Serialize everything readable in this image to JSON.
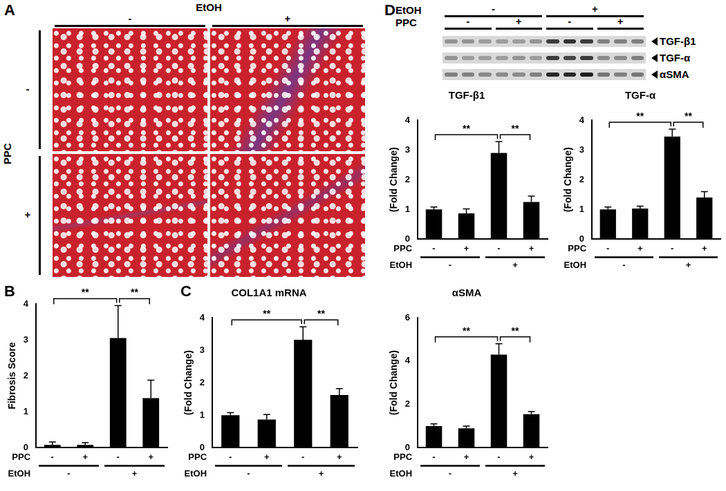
{
  "figure": {
    "histology": {
      "panel": "A",
      "column_title": "EtOH",
      "columns": [
        "-",
        "+"
      ],
      "row_title": "PPC",
      "rows": [
        "-",
        "+"
      ]
    },
    "blot": {
      "panel": "D",
      "rows": [
        {
          "name": "EtOH",
          "labels": [
            "-",
            "+"
          ]
        },
        {
          "name": "PPC",
          "labels": [
            "-",
            "+",
            "-",
            "+"
          ]
        }
      ],
      "bands": [
        "TGF-β1",
        "TGF-α",
        "αSMA"
      ]
    }
  },
  "chart_data": [
    {
      "type": "bar",
      "panel": "B",
      "y_label": "Fibrosis Score",
      "categories": [
        "-",
        "+",
        "-",
        "+"
      ],
      "category_label": "PPC",
      "groups": {
        "name": "EtOH",
        "labels": [
          "-",
          "+"
        ]
      },
      "values": [
        0.08,
        0.08,
        3.05,
        1.38
      ],
      "errors": [
        0.08,
        0.06,
        0.9,
        0.5
      ],
      "color": "#000000",
      "ylim": [
        0,
        4
      ],
      "yticks": [
        0,
        1,
        2,
        3,
        4
      ],
      "grid": false,
      "significance": [
        {
          "from": 0,
          "to": 2,
          "label": "**"
        },
        {
          "from": 2,
          "to": 3,
          "label": "**"
        }
      ]
    },
    {
      "type": "bar",
      "panel": "C",
      "title": "COL1A1 mRNA",
      "y_label": "(Fold Change)",
      "categories": [
        "-",
        "+",
        "-",
        "+"
      ],
      "category_label": "PPC",
      "groups": {
        "name": "EtOH",
        "labels": [
          "-",
          "+"
        ]
      },
      "values": [
        1.0,
        0.87,
        3.32,
        1.62
      ],
      "errors": [
        0.08,
        0.15,
        0.4,
        0.2
      ],
      "color": "#000000",
      "ylim": [
        0,
        4
      ],
      "yticks": [
        0,
        1,
        2,
        3,
        4
      ],
      "grid": false,
      "significance": [
        {
          "from": 0,
          "to": 2,
          "label": "**"
        },
        {
          "from": 2,
          "to": 3,
          "label": "**"
        }
      ]
    },
    {
      "type": "bar",
      "title": "TGF-β1",
      "y_label": "(Fold Change)",
      "categories": [
        "-",
        "+",
        "-",
        "+"
      ],
      "category_label": "PPC",
      "groups": {
        "name": "EtOH",
        "labels": [
          "-",
          "+"
        ]
      },
      "values": [
        1.0,
        0.87,
        2.9,
        1.25
      ],
      "errors": [
        0.08,
        0.15,
        0.38,
        0.2
      ],
      "color": "#000000",
      "ylim": [
        0,
        4
      ],
      "yticks": [
        0,
        1,
        2,
        3,
        4
      ],
      "grid": false,
      "significance": [
        {
          "from": 0,
          "to": 2,
          "label": "**"
        },
        {
          "from": 2,
          "to": 3,
          "label": "**"
        }
      ]
    },
    {
      "type": "bar",
      "title": "TGF-α",
      "y_label": "(Fold Change)",
      "categories": [
        "-",
        "+",
        "-",
        "+"
      ],
      "category_label": "PPC",
      "groups": {
        "name": "EtOH",
        "labels": [
          "-",
          "+"
        ]
      },
      "values": [
        1.0,
        1.03,
        3.45,
        1.4
      ],
      "errors": [
        0.08,
        0.08,
        0.25,
        0.2
      ],
      "color": "#000000",
      "ylim": [
        0,
        4
      ],
      "yticks": [
        0,
        1,
        2,
        3,
        4
      ],
      "grid": false,
      "significance": [
        {
          "from": 0,
          "to": 2,
          "label": "**"
        },
        {
          "from": 2,
          "to": 3,
          "label": "**"
        }
      ]
    },
    {
      "type": "bar",
      "title": "αSMA",
      "y_label": "(Fold Change)",
      "categories": [
        "-",
        "+",
        "-",
        "+"
      ],
      "category_label": "PPC",
      "groups": {
        "name": "EtOH",
        "labels": [
          "-",
          "+"
        ]
      },
      "values": [
        1.0,
        0.9,
        4.3,
        1.55
      ],
      "errors": [
        0.1,
        0.1,
        0.5,
        0.12
      ],
      "color": "#000000",
      "ylim": [
        0,
        6
      ],
      "yticks": [
        0,
        2,
        4,
        6
      ],
      "grid": false,
      "significance": [
        {
          "from": 0,
          "to": 2,
          "label": "**"
        },
        {
          "from": 2,
          "to": 3,
          "label": "**"
        }
      ]
    }
  ]
}
